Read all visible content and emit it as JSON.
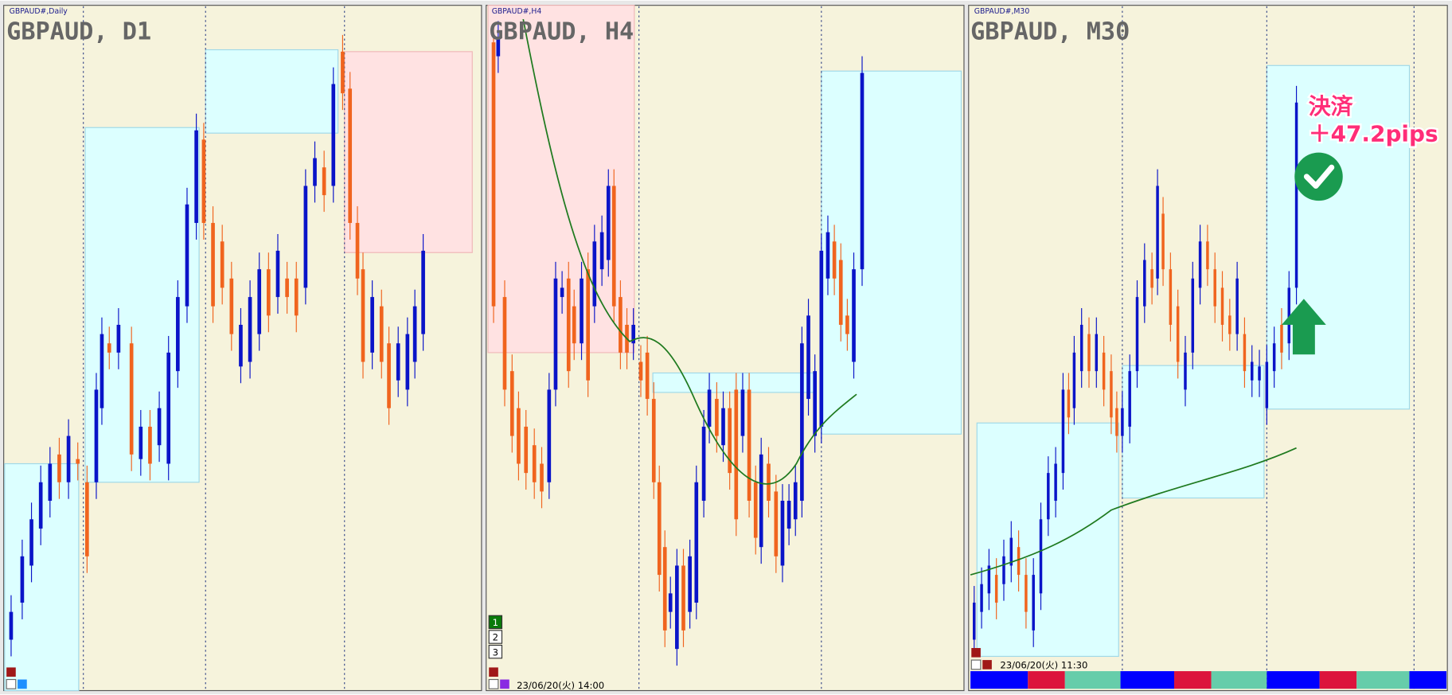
{
  "panels": [
    {
      "symbol_label": "GBPAUD#,Daily",
      "title": "GBPAUD, D1"
    },
    {
      "symbol_label": "GBPAUD#,H4",
      "title": "GBPAUD, H4",
      "timestamp": "23/06/20(火) 14:00",
      "buttons": [
        "1",
        "2",
        "3"
      ]
    },
    {
      "symbol_label": "GBPAUD#,M30",
      "title": "GBPAUD, M30",
      "timestamp": "23/06/20(火) 11:30"
    }
  ],
  "annotation": {
    "label": "決済",
    "result": "＋47.2pips"
  }
}
